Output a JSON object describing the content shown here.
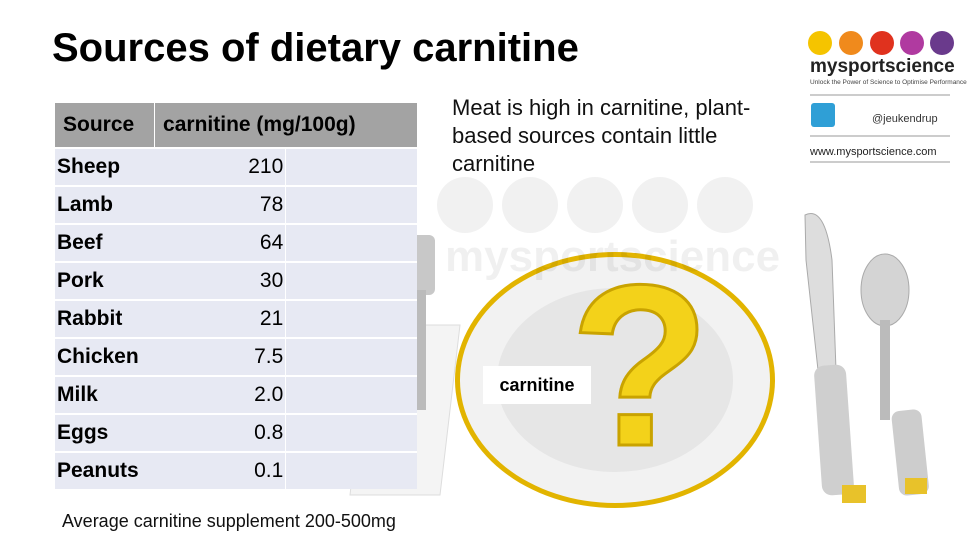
{
  "header": {
    "title": "Sources of dietary carnitine"
  },
  "note": "Meat is high in carnitine, plant-based sources contain little carnitine",
  "table": {
    "columns": [
      "Source",
      "carnitine (mg/100g)"
    ],
    "rows": [
      [
        "Sheep",
        "210"
      ],
      [
        "Lamb",
        "78"
      ],
      [
        "Beef",
        "64"
      ],
      [
        "Pork",
        "30"
      ],
      [
        "Rabbit",
        "21"
      ],
      [
        "Chicken",
        "7.5"
      ],
      [
        "Milk",
        "2.0"
      ],
      [
        "Eggs",
        "0.8"
      ],
      [
        "Peanuts",
        "0.1"
      ]
    ]
  },
  "footnote": "Average carnitine supplement 200-500mg",
  "plate": {
    "symbol": "?",
    "label": "carnitine",
    "watermark": "mysportscience"
  },
  "logo": {
    "brand": "mysportscience",
    "tagline": "Unlock the Power of Science to Optimise Performance",
    "handle": "@jeukendrup",
    "website": "www.mysportscience.com"
  }
}
